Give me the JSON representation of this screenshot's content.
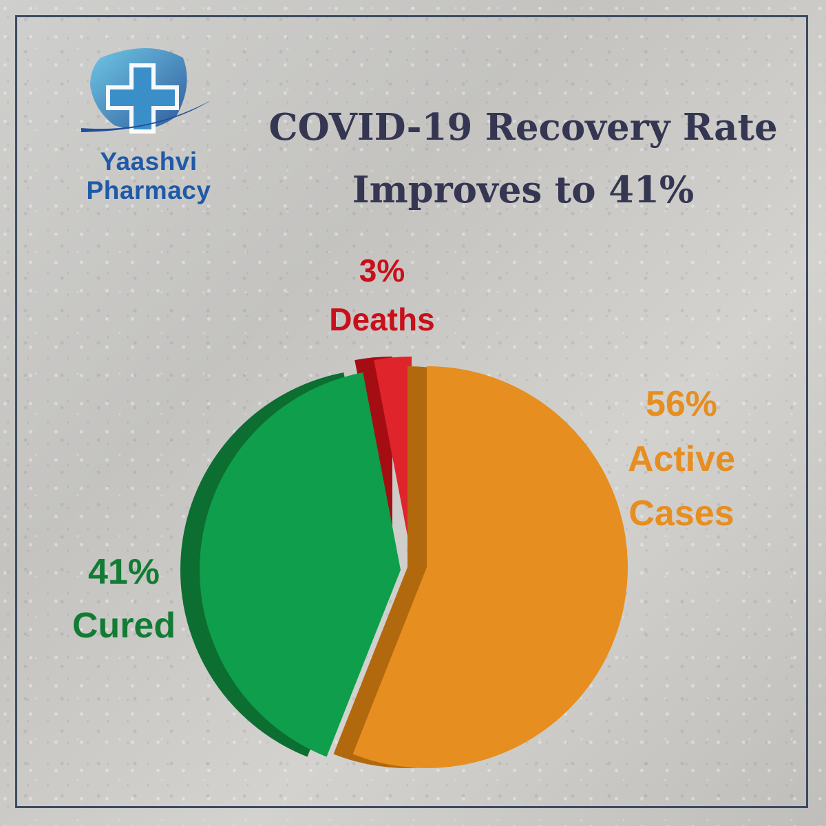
{
  "brand": {
    "name": "Yaashvi Pharmacy",
    "logo_icon": "medical-cross-icon",
    "colors": {
      "primary": "#1f5aa8",
      "accent": "#4fa9d6"
    }
  },
  "chart_data": {
    "type": "pie",
    "title_line1": "COVID-19 Recovery Rate",
    "title_line2": "Improves to 41%",
    "slices": [
      {
        "label": "Deaths",
        "value": 3,
        "value_label": "3%",
        "color": "#e0242b",
        "side_color": "#a40e12"
      },
      {
        "label": "Active Cases",
        "label_line1": "Active",
        "label_line2": "Cases",
        "value": 56,
        "value_label": "56%",
        "color": "#e68e1f",
        "side_color": "#b2690d"
      },
      {
        "label": "Cured",
        "value": 41,
        "value_label": "41%",
        "color": "#0f9e4b",
        "side_color": "#0c6e31"
      }
    ]
  }
}
